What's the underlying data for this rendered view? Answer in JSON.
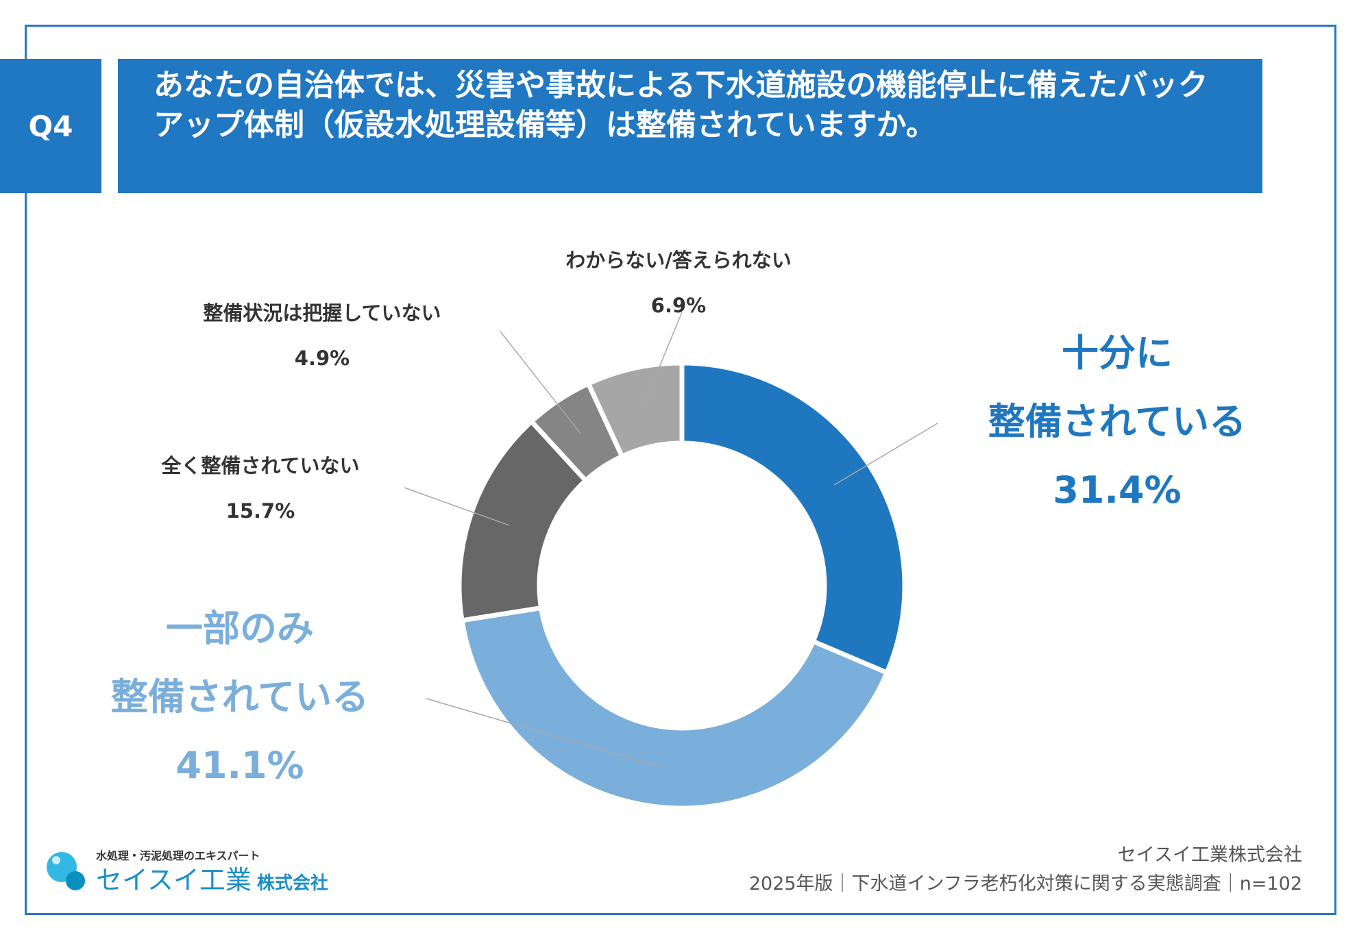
{
  "header": {
    "badge": "Q4",
    "question": "あなたの自治体では、災害や事故による下水道施設の機能停止に備えたバックアップ体制（仮設水処理設備等）は整備されていますか。"
  },
  "chart_data": {
    "type": "pie",
    "title": "",
    "donut": true,
    "slices": [
      {
        "label_lines": [
          "十分に",
          "整備されている"
        ],
        "value": 31.4,
        "value_label": "31.4%",
        "color": "#1f77c0"
      },
      {
        "label_lines": [
          "一部のみ",
          "整備されている"
        ],
        "value": 41.1,
        "value_label": "41.1%",
        "color": "#7aaedb"
      },
      {
        "label_lines": [
          "全く整備されていない"
        ],
        "value": 15.7,
        "value_label": "15.7%",
        "color": "#676767"
      },
      {
        "label_lines": [
          "整備状況は把握していない"
        ],
        "value": 4.9,
        "value_label": "4.9%",
        "color": "#858585"
      },
      {
        "label_lines": [
          "わからない/答えられない"
        ],
        "value": 6.9,
        "value_label": "6.9%",
        "color": "#a6a6a6"
      }
    ]
  },
  "footer": {
    "company": "セイスイ工業株式会社",
    "source": "2025年版｜下水道インフラ老朽化対策に関する実態調査｜n=102"
  },
  "logo": {
    "tagline": "水処理・汚泥処理のエキスパート",
    "name": "セイスイ工業",
    "corp": "株式会社",
    "color": "#1a8fc6"
  }
}
